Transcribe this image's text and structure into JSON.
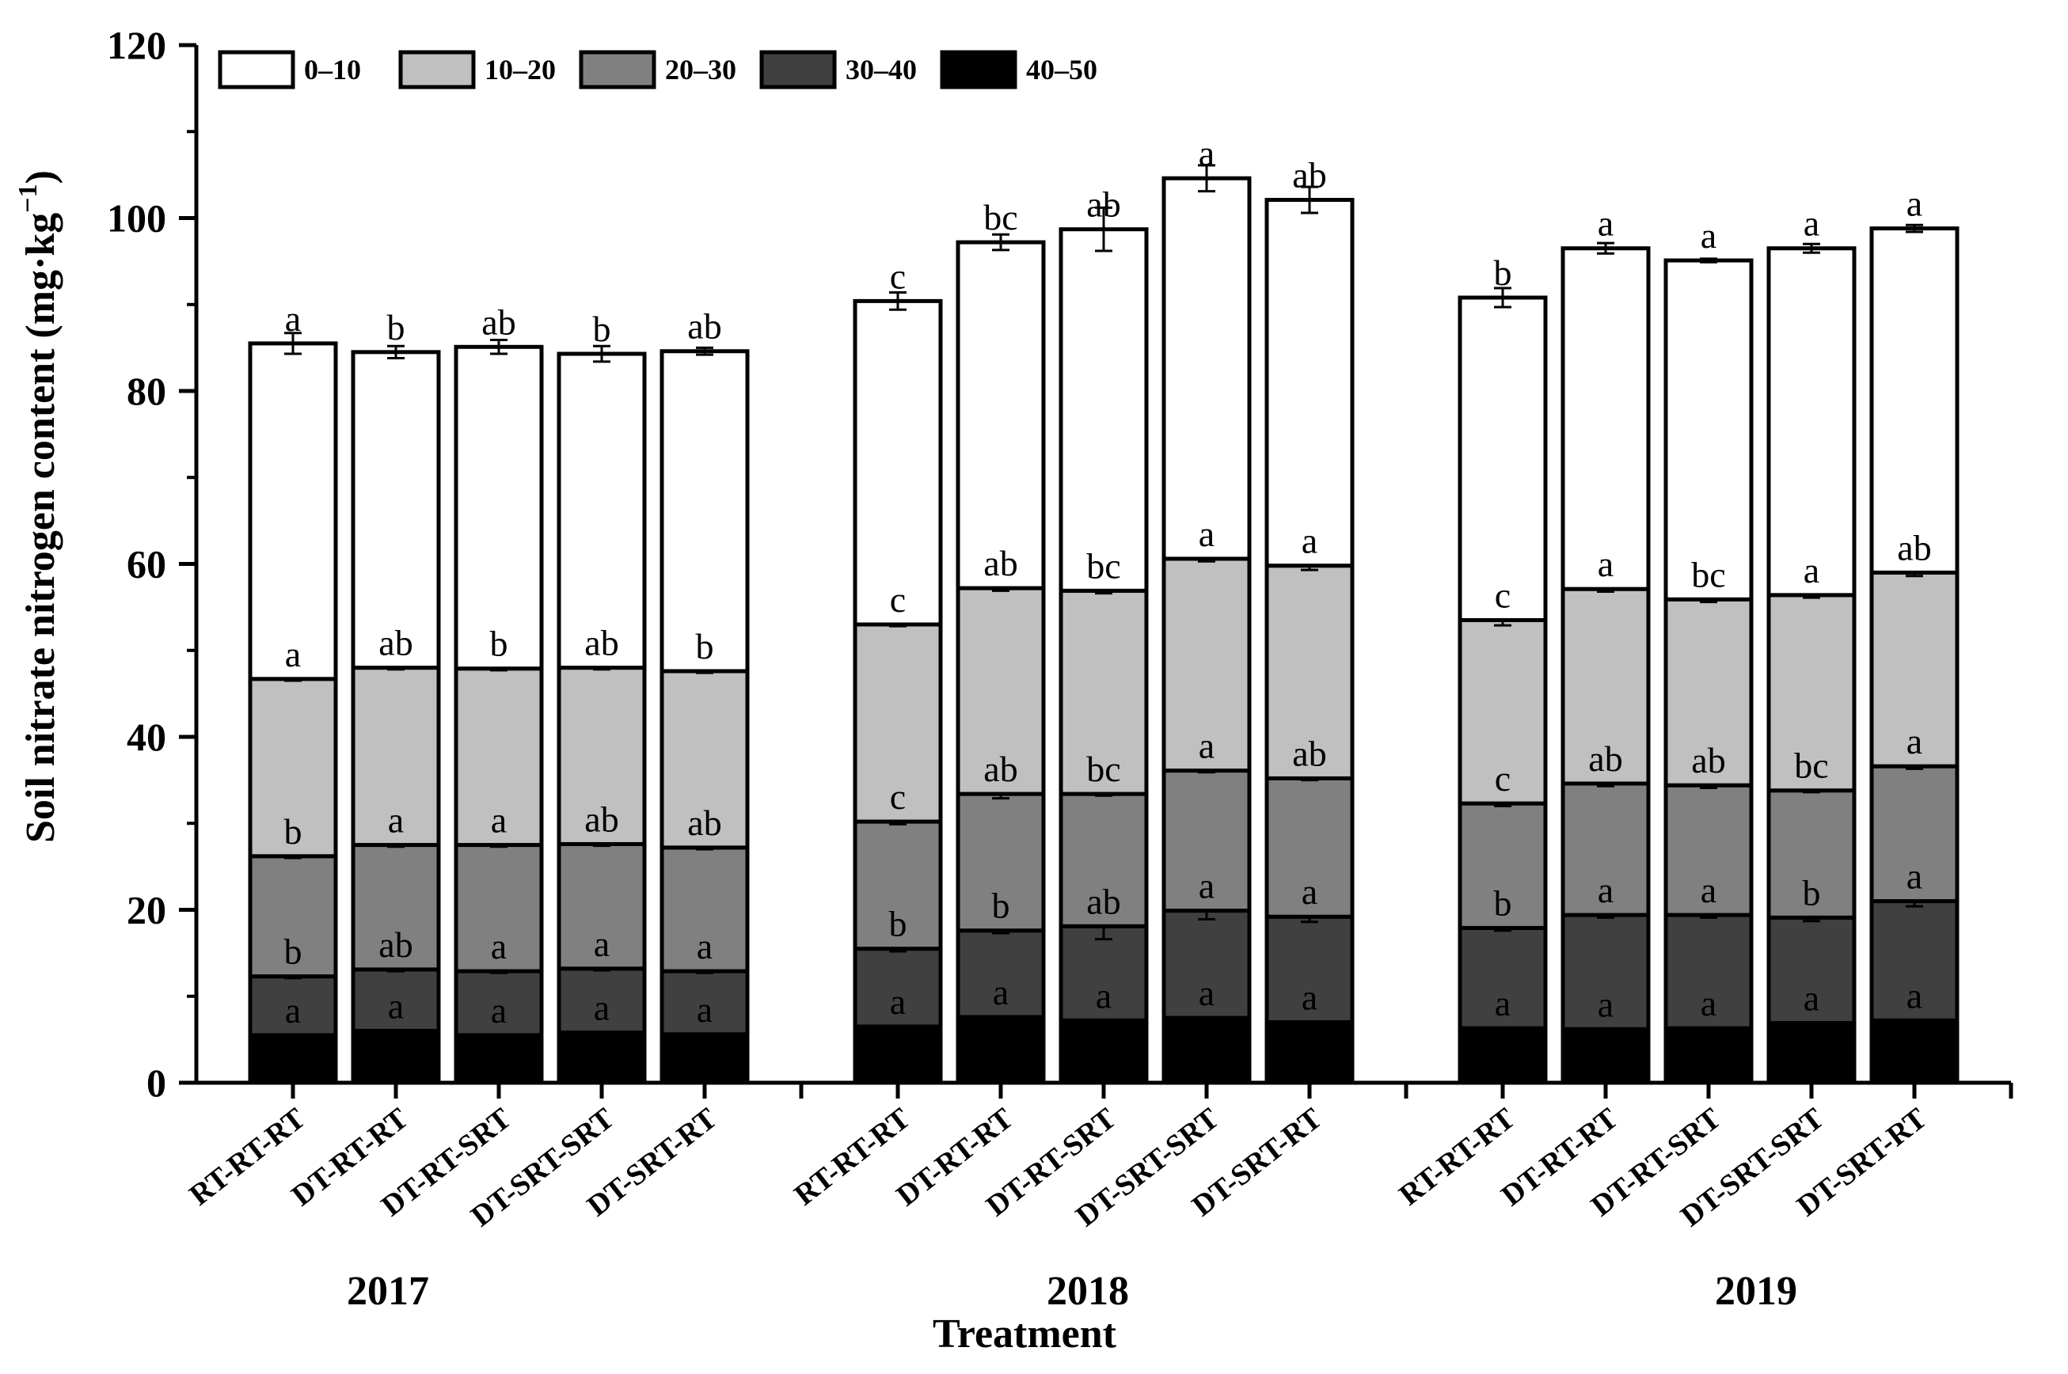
{
  "chart_data": {
    "type": "bar",
    "stacked": true,
    "ylabel": "Soil nitrate nitrogen content (mg·kg",
    "ylabel_superscript": "−1",
    "ylabel_suffix": ")",
    "xlabel": "Treatment",
    "ylim": [
      0,
      120
    ],
    "yticks": [
      "0",
      "20",
      "40",
      "60",
      "80",
      "100",
      "120"
    ],
    "grid": false,
    "legend_position": "top-left",
    "groups": [
      "2017",
      "2018",
      "2019"
    ],
    "categories": [
      "RT-RT-RT",
      "DT-RT-RT",
      "DT-RT-SRT",
      "DT-SRT-SRT",
      "DT-SRT-RT"
    ],
    "series": [
      {
        "name": "40–50",
        "color": "#000000",
        "values": [
          [
            5.5,
            6.0,
            5.5,
            5.8,
            5.6
          ],
          [
            6.5,
            7.6,
            7.2,
            7.5,
            7.0
          ],
          [
            6.3,
            6.2,
            6.3,
            6.9,
            7.2
          ]
        ],
        "errors": [
          [
            0.5,
            0.6,
            0.5,
            0.5,
            0.5
          ],
          [
            0.6,
            0.7,
            0.6,
            0.6,
            0.7
          ],
          [
            0.6,
            0.5,
            0.5,
            0.6,
            0.8
          ]
        ],
        "labels": [
          [
            "",
            "",
            "",
            "",
            ""
          ],
          [
            "",
            "",
            "",
            "",
            ""
          ],
          [
            "",
            "",
            "",
            "",
            ""
          ]
        ]
      },
      {
        "name": "30–40",
        "color": "#404040",
        "values": [
          [
            6.8,
            7.1,
            7.4,
            7.4,
            7.3
          ],
          [
            9.0,
            10.0,
            10.9,
            12.4,
            12.2
          ],
          [
            11.6,
            13.2,
            13.1,
            12.2,
            13.8
          ]
        ],
        "errors": [
          [
            0.2,
            0.2,
            0.2,
            0.2,
            0.2
          ],
          [
            0.3,
            0.3,
            1.5,
            1.0,
            0.6
          ],
          [
            0.3,
            0.3,
            0.3,
            0.4,
            0.6
          ]
        ],
        "labels": [
          [
            "a",
            "a",
            "a",
            "a",
            "a"
          ],
          [
            "a",
            "a",
            "a",
            "a",
            "a"
          ],
          [
            "a",
            "a",
            "a",
            "a",
            "a"
          ]
        ]
      },
      {
        "name": "20–30",
        "color": "#808080",
        "values": [
          [
            13.9,
            14.4,
            14.6,
            14.4,
            14.3
          ],
          [
            14.7,
            15.8,
            15.3,
            16.2,
            16.0
          ],
          [
            14.4,
            15.2,
            15.0,
            14.7,
            15.6
          ]
        ],
        "errors": [
          [
            0.2,
            0.2,
            0.2,
            0.2,
            0.2
          ],
          [
            0.3,
            0.5,
            0.2,
            0.2,
            0.2
          ],
          [
            0.3,
            0.3,
            0.3,
            0.2,
            0.3
          ]
        ],
        "labels": [
          [
            "b",
            "ab",
            "a",
            "a",
            "a"
          ],
          [
            "b",
            "b",
            "ab",
            "a",
            "a"
          ],
          [
            "b",
            "a",
            "a",
            "b",
            "a"
          ]
        ]
      },
      {
        "name": "10–20",
        "color": "#c0c0c0",
        "values": [
          [
            20.5,
            20.5,
            20.4,
            20.4,
            20.4
          ],
          [
            22.8,
            23.8,
            23.5,
            24.5,
            24.6
          ],
          [
            21.2,
            22.5,
            21.5,
            22.6,
            22.4
          ]
        ],
        "errors": [
          [
            0.2,
            0.2,
            0.2,
            0.2,
            0.2
          ],
          [
            0.2,
            0.3,
            0.3,
            0.3,
            0.5
          ],
          [
            0.6,
            0.3,
            0.3,
            0.3,
            0.4
          ]
        ],
        "labels": [
          [
            "b",
            "a",
            "a",
            "ab",
            "ab"
          ],
          [
            "c",
            "ab",
            "bc",
            "a",
            "ab"
          ],
          [
            "c",
            "ab",
            "ab",
            "bc",
            "a"
          ]
        ]
      },
      {
        "name": "0–10",
        "color": "#ffffff",
        "values": [
          [
            38.8,
            36.5,
            37.2,
            36.3,
            37.0
          ],
          [
            37.4,
            40.0,
            41.8,
            44.0,
            42.3
          ],
          [
            37.3,
            39.4,
            39.2,
            40.1,
            39.8
          ]
        ],
        "errors": [
          [
            1.2,
            0.7,
            0.8,
            0.9,
            0.4
          ],
          [
            1.0,
            0.9,
            2.5,
            1.5,
            1.5
          ],
          [
            1.1,
            0.6,
            0.2,
            0.5,
            0.4
          ]
        ],
        "labels": [
          [
            "a",
            "ab",
            "b",
            "ab",
            "b"
          ],
          [
            "c",
            "ab",
            "bc",
            "a",
            "a"
          ],
          [
            "c",
            "a",
            "bc",
            "a",
            "ab"
          ]
        ]
      }
    ],
    "total_labels": [
      [
        "a",
        "b",
        "ab",
        "b",
        "ab"
      ],
      [
        "c",
        "bc",
        "ab",
        "a",
        "ab"
      ],
      [
        "b",
        "a",
        "a",
        "a",
        "a"
      ]
    ],
    "legend": [
      "0–10",
      "10–20",
      "20–30",
      "30–40",
      "40–50"
    ]
  }
}
